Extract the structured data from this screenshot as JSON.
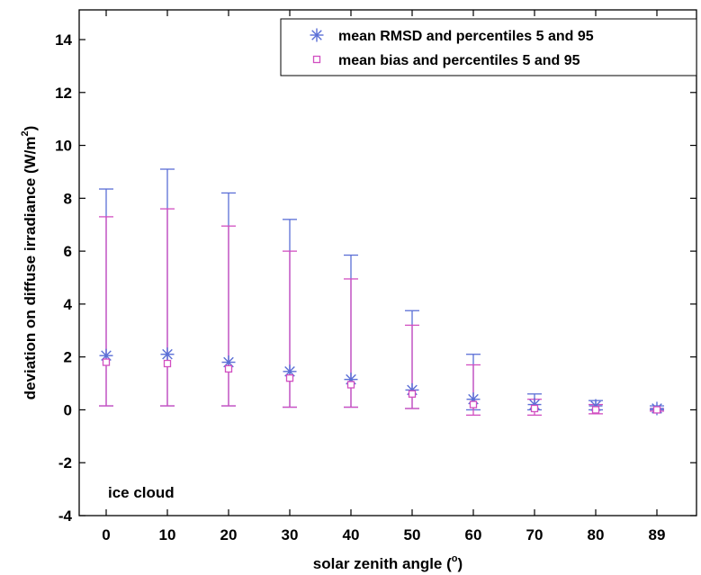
{
  "chart_data": {
    "type": "scatter",
    "xlabel": "solar zenith angle (°)",
    "xlabel_main": "solar zenith angle (",
    "xlabel_sup": "o",
    "xlabel_end": ")",
    "ylabel_main": "deviation on diffuse irradiance (W/m",
    "ylabel_sup": "2",
    "ylabel_end": ")",
    "categories": [
      "0",
      "10",
      "20",
      "30",
      "40",
      "50",
      "60",
      "70",
      "80",
      "89"
    ],
    "ylim": [
      -4,
      15
    ],
    "yticks": [
      -4,
      -2,
      0,
      2,
      4,
      6,
      8,
      10,
      12,
      14
    ],
    "ytick_labels": [
      "-4",
      "-2",
      "0",
      "2",
      "4",
      "6",
      "8",
      "10",
      "12",
      "14"
    ],
    "grid": false,
    "legend_position": "top-right",
    "annotation": "ice cloud",
    "series": [
      {
        "name": "mean RMSD and percentiles 5 and 95",
        "marker": "star",
        "color": "#5b6fd6",
        "mean": [
          2.05,
          2.1,
          1.8,
          1.45,
          1.15,
          0.75,
          0.4,
          0.2,
          0.15,
          0.05
        ],
        "p5": [
          0.15,
          0.15,
          0.15,
          0.1,
          0.1,
          0.05,
          0.0,
          0.0,
          0.0,
          0.0
        ],
        "p95": [
          8.35,
          9.1,
          8.2,
          7.2,
          5.85,
          3.75,
          2.1,
          0.6,
          0.35,
          0.15
        ]
      },
      {
        "name": "mean bias and percentiles 5 and 95",
        "marker": "square",
        "color": "#d24fc1",
        "mean": [
          1.8,
          1.75,
          1.55,
          1.2,
          0.95,
          0.6,
          0.2,
          0.05,
          0.0,
          0.0
        ],
        "p5": [
          0.15,
          0.15,
          0.15,
          0.1,
          0.1,
          0.05,
          -0.2,
          -0.2,
          -0.15,
          -0.05
        ],
        "p95": [
          7.3,
          7.6,
          6.95,
          6.0,
          4.95,
          3.2,
          1.7,
          0.4,
          0.2,
          0.05
        ]
      }
    ]
  }
}
